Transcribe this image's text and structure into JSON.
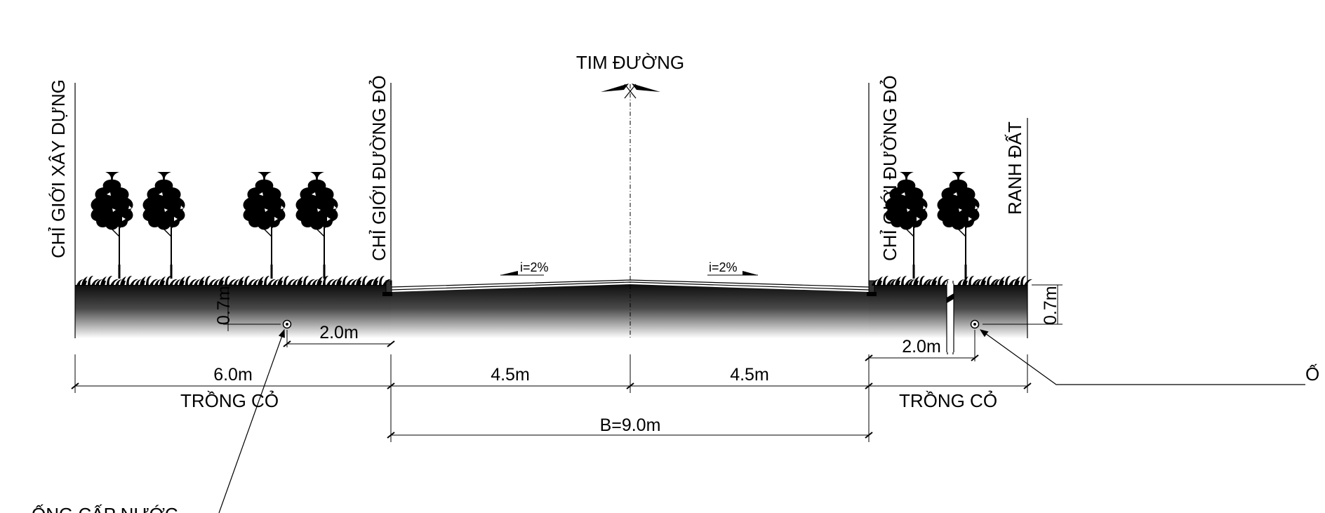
{
  "labels": {
    "centerline": "TIM ĐƯỜNG",
    "building_line": "CHỈ GIỚI XÂY DỰNG",
    "red_line_left": "CHỈ GIỚI ĐƯỜNG ĐỎ",
    "red_line_right": "CHỈ GIỚI ĐƯỜNG ĐỎ",
    "land_boundary": "RANH ĐẤT",
    "grass_left": "TRỒNG CỎ",
    "grass_right": "TRỒNG CỎ",
    "pipe_left_callout": "ỐNG CẤP NƯỚC",
    "pipe_right_callout": "Ố"
  },
  "slopes": {
    "left": "i=2%",
    "right": "i=2%"
  },
  "dimensions": {
    "left_width": "6.0m",
    "left_pipe_offset": "2.0m",
    "left_pipe_depth": "0.7m",
    "lane_left": "4.5m",
    "lane_right": "4.5m",
    "road_total": "B=9.0m",
    "right_pipe_offset": "2.0m",
    "right_pipe_depth": "0.7m"
  },
  "colors": {
    "ground_dark": "#111111",
    "ground_light": "#ffffff",
    "line": "#000000"
  }
}
